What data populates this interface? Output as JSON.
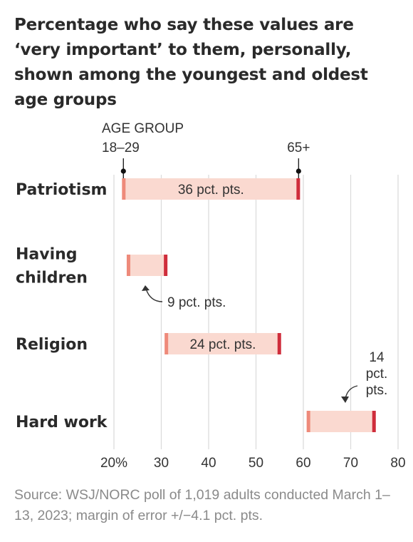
{
  "title": "Percentage who say these values are ‘very important’ to them, personally, shown among the youngest and oldest age groups",
  "source": "Source: WSJ/NORC poll of 1,019 adults conducted March 1–13, 2023; margin of error +/−4.1 pct. pts.",
  "colors": {
    "young": "#ee8a7a",
    "old": "#cf2d3b",
    "band": "#fad9d0",
    "grid": "#dcdcdc"
  },
  "chart_data": {
    "type": "dumbbell",
    "legend_header": "AGE GROUP",
    "series": [
      {
        "name": "18–29",
        "key": "young"
      },
      {
        "name": "65+",
        "key": "old"
      }
    ],
    "xlim": [
      18,
      82
    ],
    "ticks": [
      {
        "value": 20,
        "label": "20%"
      },
      {
        "value": 30,
        "label": "30"
      },
      {
        "value": 40,
        "label": "40"
      },
      {
        "value": 50,
        "label": "50"
      },
      {
        "value": 60,
        "label": "60"
      },
      {
        "value": 70,
        "label": "70"
      },
      {
        "value": 80,
        "label": "80"
      }
    ],
    "rows": [
      {
        "category_lines": [
          "Patriotism"
        ],
        "young": 22,
        "old": 59,
        "diff_label_lines": [
          "36 pct. pts."
        ]
      },
      {
        "category_lines": [
          "Having",
          "children"
        ],
        "young": 23,
        "old": 31,
        "diff_label_lines": [
          "9 pct. pts."
        ]
      },
      {
        "category_lines": [
          "Religion"
        ],
        "young": 31,
        "old": 55,
        "diff_label_lines": [
          "24 pct. pts."
        ]
      },
      {
        "category_lines": [
          "Hard work"
        ],
        "young": 61,
        "old": 75,
        "diff_label_lines": [
          "14",
          "pct.",
          "pts."
        ]
      }
    ]
  }
}
